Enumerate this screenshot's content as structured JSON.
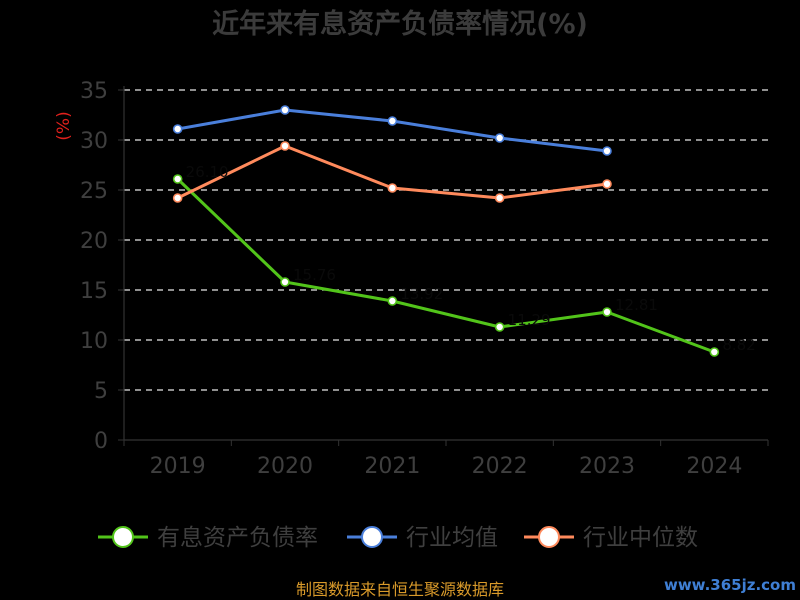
{
  "chart_data": {
    "type": "line",
    "title": "近年来有息资产负债率情况(%)",
    "ylabel": "(%)",
    "xlabel": "",
    "categories": [
      "2019",
      "2020",
      "2021",
      "2022",
      "2023",
      "2024"
    ],
    "ylim": [
      0,
      35
    ],
    "yticks": [
      0,
      5,
      10,
      15,
      20,
      25,
      30,
      35
    ],
    "grid": true,
    "legend_position": "bottom",
    "series": [
      {
        "name": "有息资产负债率",
        "color": "#52c41a",
        "values": [
          26.1,
          15.8,
          13.9,
          11.3,
          12.8,
          8.8
        ],
        "data_labels": [
          "26.10",
          "15.76",
          "13.92",
          "11.29",
          "12.81",
          "8.82"
        ]
      },
      {
        "name": "行业均值",
        "color": "#4a7fdb",
        "values": [
          31.1,
          33.0,
          31.9,
          30.2,
          28.9,
          null
        ]
      },
      {
        "name": "行业中位数",
        "color": "#ff8a5c",
        "values": [
          24.2,
          29.4,
          25.2,
          24.2,
          25.6,
          null
        ]
      }
    ]
  },
  "source_text": "制图数据来自恒生聚源数据库",
  "watermark_text": "www.365jz.com"
}
